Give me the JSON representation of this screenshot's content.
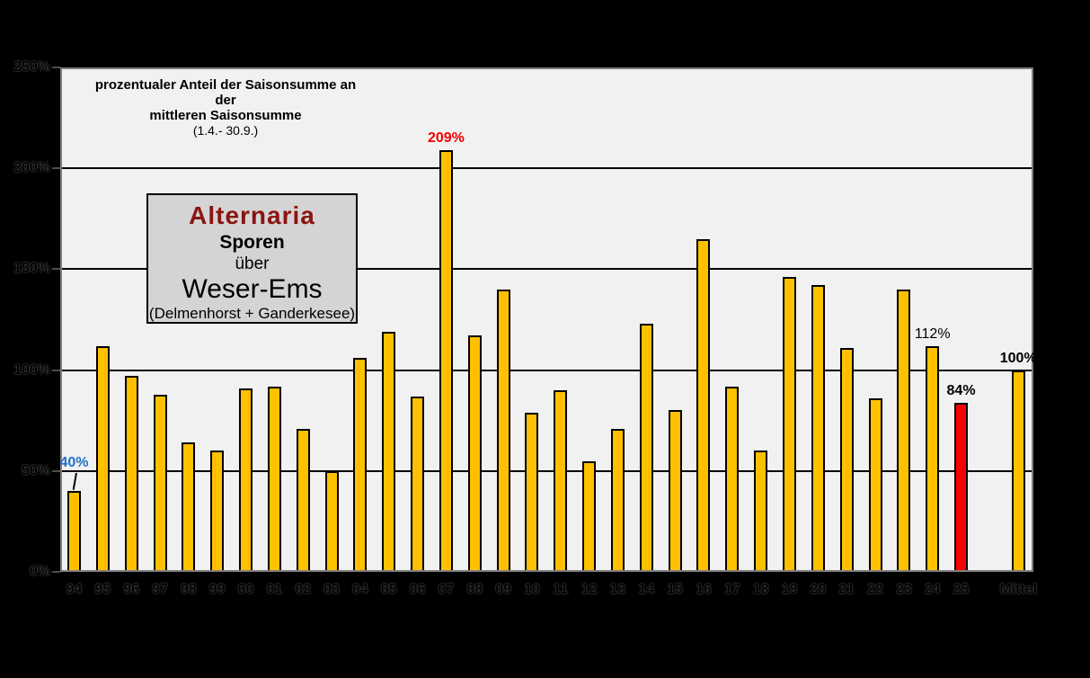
{
  "annotation": {
    "line1": "prozentualer Anteil der Saisonsumme an der",
    "line2": "mittleren Saisonsumme",
    "line3": "(1.4.- 30.9.)"
  },
  "legend": {
    "title": "Alternaria",
    "title_color": "#8b1412",
    "line2": "Sporen",
    "line3": "über",
    "line4": "Weser-Ems",
    "line5": "(Delmenhorst + Ganderkesee)"
  },
  "chart_data": {
    "type": "bar",
    "title": "Alternaria Sporen über Weser-Ems (Delmenhorst + Ganderkesee)",
    "subtitle": "prozentualer Anteil der Saisonsumme an der mittleren Saisonsumme (1.4.- 30.9.)",
    "categories": [
      "94",
      "95",
      "96",
      "97",
      "98",
      "99",
      "00",
      "01",
      "02",
      "03",
      "04",
      "05",
      "06",
      "07",
      "08",
      "09",
      "10",
      "11",
      "12",
      "13",
      "14",
      "15",
      "16",
      "17",
      "18",
      "19",
      "20",
      "21",
      "22",
      "23",
      "24",
      "25",
      "Mittel"
    ],
    "values": [
      40,
      112,
      97,
      88,
      64,
      60,
      91,
      92,
      71,
      50,
      106,
      119,
      87,
      209,
      117,
      140,
      79,
      90,
      55,
      71,
      123,
      80,
      165,
      92,
      60,
      146,
      142,
      111,
      86,
      140,
      112,
      84,
      100
    ],
    "ylim": [
      0,
      250
    ],
    "y_ticks": [
      "0%",
      "50%",
      "100%",
      "150%",
      "200%",
      "250%"
    ],
    "grid": "horizontal, 50% steps",
    "legend_position": "inside upper-left box",
    "page_bg": "#000000",
    "plot_bg": "#f1f1f1",
    "bar_color": "#ffc000",
    "bar_border": "#000000",
    "highlight": {
      "category": "25",
      "color": "#fa0000"
    },
    "gap_before_category": "Mittel",
    "value_labels": [
      {
        "category": "94",
        "text": "40%",
        "color": "#1f72c6",
        "bold": true
      },
      {
        "category": "07",
        "text": "209%",
        "color": "#f40000",
        "bold": true
      },
      {
        "category": "24",
        "text": "112%",
        "color": "#000000",
        "bold": false
      },
      {
        "category": "25",
        "text": "84%",
        "color": "#000000",
        "bold": true
      },
      {
        "category": "Mittel",
        "text": "100%",
        "color": "#000000",
        "bold": true
      }
    ]
  }
}
